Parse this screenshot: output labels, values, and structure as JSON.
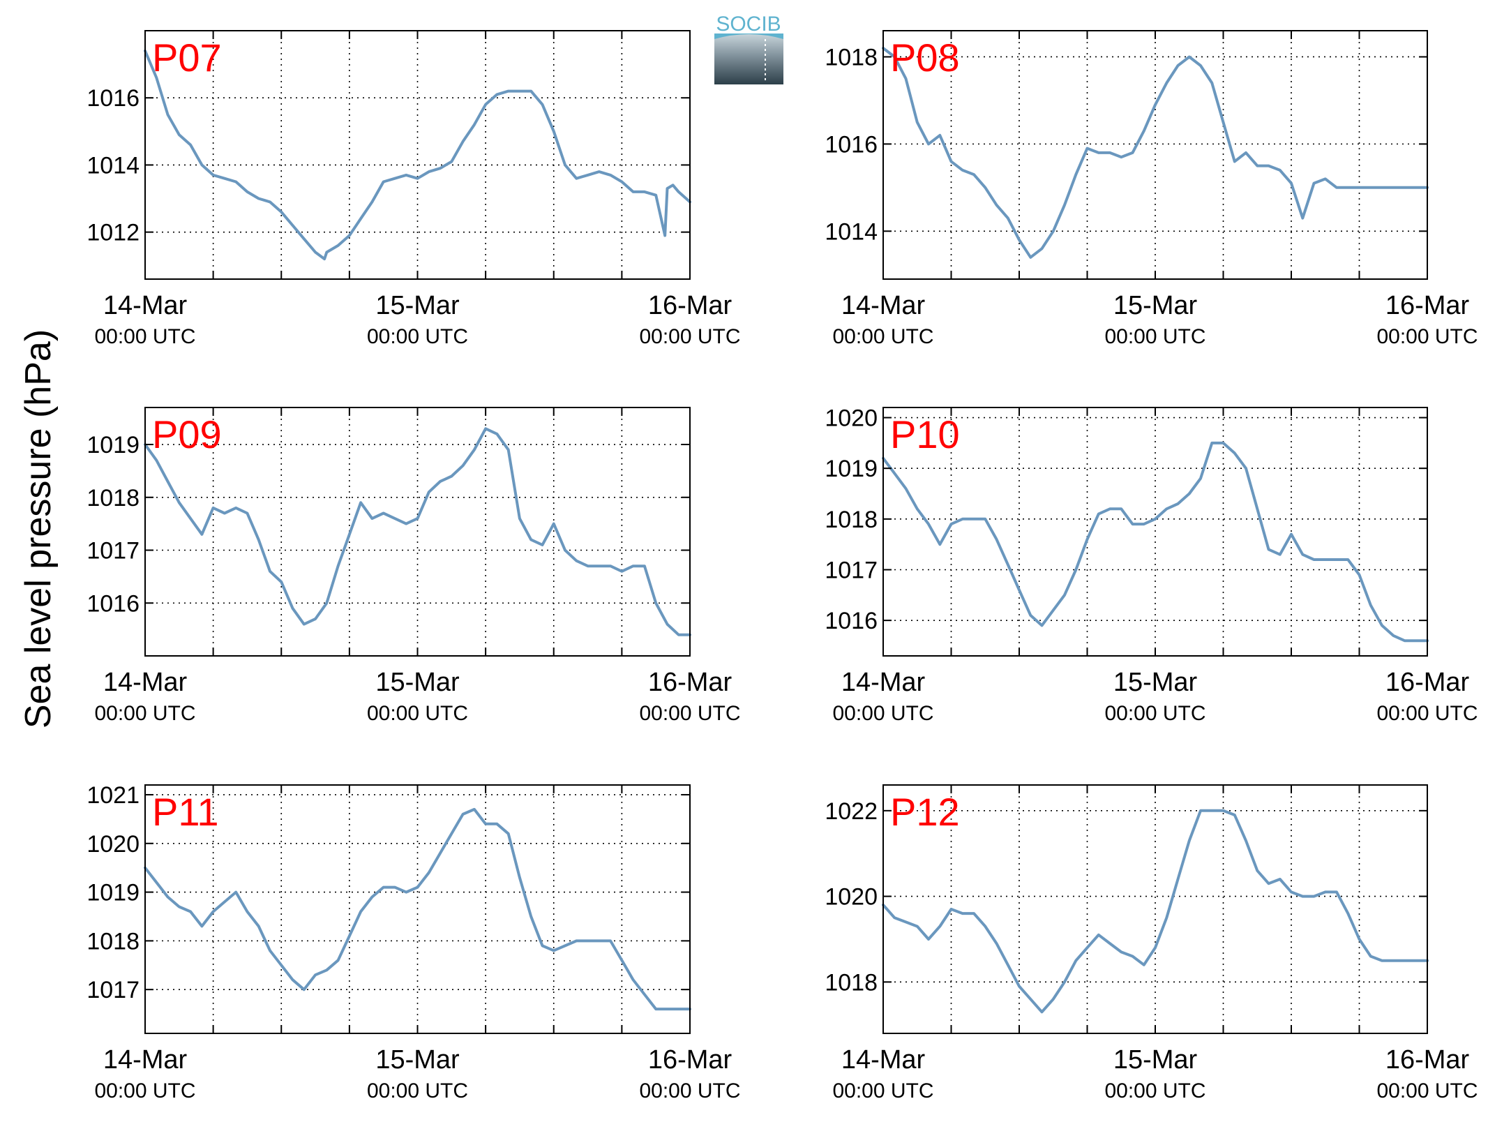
{
  "figure": {
    "ylabel": "Sea level pressure (hPa)",
    "logo_text": "SOCIB"
  },
  "colors": {
    "line": "#6a97be",
    "panel_label": "#ff0000",
    "logo_top": "#5fb3cf",
    "logo_bottom": "#2c3f49"
  },
  "chart_data": [
    {
      "type": "line",
      "label": "P07",
      "x_ticks": [
        {
          "line1": "14-Mar",
          "line2": "00:00 UTC"
        },
        {
          "line1": "15-Mar",
          "line2": "00:00 UTC"
        },
        {
          "line1": "16-Mar",
          "line2": "00:00 UTC"
        }
      ],
      "x_major_hours": [
        0,
        24,
        48
      ],
      "x_grid_hours": [
        6,
        12,
        18,
        24,
        30,
        36,
        42
      ],
      "xlim_hours": [
        0,
        48
      ],
      "ylim": [
        1010.6,
        1018.0
      ],
      "yticks": [
        1012,
        1014,
        1016
      ],
      "grid": true,
      "x_hours": [
        0,
        1,
        2,
        3,
        4,
        5,
        6,
        7,
        8,
        9,
        10,
        11,
        12,
        13,
        14,
        15,
        15.8,
        16,
        17,
        18,
        19,
        20,
        21,
        22,
        23,
        24,
        25,
        26,
        27,
        28,
        29,
        30,
        31,
        32,
        33,
        34,
        35,
        36,
        37,
        38,
        39,
        40,
        41,
        42,
        43,
        44,
        45,
        45.8,
        46,
        46.5,
        47,
        48
      ],
      "y": [
        1017.4,
        1016.6,
        1015.5,
        1014.9,
        1014.6,
        1014.0,
        1013.7,
        1013.6,
        1013.5,
        1013.2,
        1013.0,
        1012.9,
        1012.6,
        1012.2,
        1011.8,
        1011.4,
        1011.2,
        1011.4,
        1011.6,
        1011.9,
        1012.4,
        1012.9,
        1013.5,
        1013.6,
        1013.7,
        1013.6,
        1013.8,
        1013.9,
        1014.1,
        1014.7,
        1015.2,
        1015.8,
        1016.1,
        1016.2,
        1016.2,
        1016.2,
        1015.8,
        1015.0,
        1014.0,
        1013.6,
        1013.7,
        1013.8,
        1013.7,
        1013.5,
        1013.2,
        1013.2,
        1013.1,
        1011.9,
        1013.3,
        1013.4,
        1013.2,
        1012.9
      ]
    },
    {
      "type": "line",
      "label": "P08",
      "x_ticks": [
        {
          "line1": "14-Mar",
          "line2": "00:00 UTC"
        },
        {
          "line1": "15-Mar",
          "line2": "00:00 UTC"
        },
        {
          "line1": "16-Mar",
          "line2": "00:00 UTC"
        }
      ],
      "x_major_hours": [
        0,
        24,
        48
      ],
      "x_grid_hours": [
        6,
        12,
        18,
        24,
        30,
        36,
        42
      ],
      "xlim_hours": [
        0,
        48
      ],
      "ylim": [
        1012.9,
        1018.6
      ],
      "yticks": [
        1014,
        1016,
        1018
      ],
      "grid": true,
      "x_hours": [
        0,
        1,
        2,
        3,
        4,
        5,
        6,
        7,
        8,
        9,
        10,
        11,
        12,
        13,
        14,
        15,
        16,
        17,
        18,
        19,
        20,
        21,
        22,
        23,
        24,
        25,
        26,
        27,
        28,
        29,
        30,
        31,
        32,
        33,
        34,
        35,
        36,
        37,
        38,
        39,
        40,
        41,
        42,
        43,
        44,
        45,
        45.5,
        46,
        47,
        47.5,
        48
      ],
      "y": [
        1018.2,
        1018.0,
        1017.5,
        1016.5,
        1016.0,
        1016.2,
        1015.6,
        1015.4,
        1015.3,
        1015.0,
        1014.6,
        1014.3,
        1013.8,
        1013.4,
        1013.6,
        1014.0,
        1014.6,
        1015.3,
        1015.9,
        1015.8,
        1015.8,
        1015.7,
        1015.8,
        1016.3,
        1016.9,
        1017.4,
        1017.8,
        1018.0,
        1017.8,
        1017.4,
        1016.5,
        1015.6,
        1015.8,
        1015.5,
        1015.5,
        1015.4,
        1015.1,
        1014.3,
        1015.1,
        1015.2,
        1015.0,
        1015.0,
        1015.0,
        1015.0,
        1015.0,
        1015.0,
        1015.0,
        1015.0,
        1015.0,
        1015.0,
        1015.0
      ]
    },
    {
      "type": "line",
      "label": "P09",
      "x_ticks": [
        {
          "line1": "14-Mar",
          "line2": "00:00 UTC"
        },
        {
          "line1": "15-Mar",
          "line2": "00:00 UTC"
        },
        {
          "line1": "16-Mar",
          "line2": "00:00 UTC"
        }
      ],
      "x_major_hours": [
        0,
        24,
        48
      ],
      "x_grid_hours": [
        6,
        12,
        18,
        24,
        30,
        36,
        42
      ],
      "xlim_hours": [
        0,
        48
      ],
      "ylim": [
        1015.0,
        1019.7
      ],
      "yticks": [
        1016,
        1017,
        1018,
        1019
      ],
      "grid": true,
      "x_hours": [
        0,
        1,
        2,
        3,
        4,
        5,
        6,
        7,
        8,
        9,
        10,
        11,
        12,
        13,
        14,
        15,
        16,
        17,
        18,
        19,
        20,
        21,
        22,
        23,
        24,
        25,
        26,
        27,
        28,
        29,
        30,
        31,
        32,
        33,
        34,
        35,
        36,
        37,
        38,
        39,
        40,
        41,
        42,
        43,
        44,
        45,
        46,
        47,
        48
      ],
      "y": [
        1019.0,
        1018.7,
        1018.3,
        1017.9,
        1017.6,
        1017.3,
        1017.8,
        1017.7,
        1017.8,
        1017.7,
        1017.2,
        1016.6,
        1016.4,
        1015.9,
        1015.6,
        1015.7,
        1016.0,
        1016.7,
        1017.3,
        1017.9,
        1017.6,
        1017.7,
        1017.6,
        1017.5,
        1017.6,
        1018.1,
        1018.3,
        1018.4,
        1018.6,
        1018.9,
        1019.3,
        1019.2,
        1018.9,
        1017.6,
        1017.2,
        1017.1,
        1017.5,
        1017.0,
        1016.8,
        1016.7,
        1016.7,
        1016.7,
        1016.6,
        1016.7,
        1016.7,
        1016.0,
        1015.6,
        1015.4,
        1015.4
      ]
    },
    {
      "type": "line",
      "label": "P10",
      "x_ticks": [
        {
          "line1": "14-Mar",
          "line2": "00:00 UTC"
        },
        {
          "line1": "15-Mar",
          "line2": "00:00 UTC"
        },
        {
          "line1": "16-Mar",
          "line2": "00:00 UTC"
        }
      ],
      "x_major_hours": [
        0,
        24,
        48
      ],
      "x_grid_hours": [
        6,
        12,
        18,
        24,
        30,
        36,
        42
      ],
      "xlim_hours": [
        0,
        48
      ],
      "ylim": [
        1015.3,
        1020.2
      ],
      "yticks": [
        1016,
        1017,
        1018,
        1019,
        1020
      ],
      "grid": true,
      "x_hours": [
        0,
        1,
        2,
        3,
        4,
        5,
        6,
        7,
        8,
        9,
        10,
        11,
        12,
        13,
        14,
        15,
        16,
        17,
        18,
        19,
        20,
        21,
        22,
        23,
        24,
        25,
        26,
        27,
        28,
        29,
        30,
        31,
        32,
        33,
        34,
        35,
        36,
        37,
        38,
        39,
        40,
        41,
        42,
        43,
        44,
        45,
        46,
        47,
        48
      ],
      "y": [
        1019.2,
        1018.9,
        1018.6,
        1018.2,
        1017.9,
        1017.5,
        1017.9,
        1018.0,
        1018.0,
        1018.0,
        1017.6,
        1017.1,
        1016.6,
        1016.1,
        1015.9,
        1016.2,
        1016.5,
        1017.0,
        1017.6,
        1018.1,
        1018.2,
        1018.2,
        1017.9,
        1017.9,
        1018.0,
        1018.2,
        1018.3,
        1018.5,
        1018.8,
        1019.5,
        1019.5,
        1019.3,
        1019.0,
        1018.2,
        1017.4,
        1017.3,
        1017.7,
        1017.3,
        1017.2,
        1017.2,
        1017.2,
        1017.2,
        1016.9,
        1016.3,
        1015.9,
        1015.7,
        1015.6,
        1015.6,
        1015.6
      ]
    },
    {
      "type": "line",
      "label": "P11",
      "x_ticks": [
        {
          "line1": "14-Mar",
          "line2": "00:00 UTC"
        },
        {
          "line1": "15-Mar",
          "line2": "00:00 UTC"
        },
        {
          "line1": "16-Mar",
          "line2": "00:00 UTC"
        }
      ],
      "x_major_hours": [
        0,
        24,
        48
      ],
      "x_grid_hours": [
        6,
        12,
        18,
        24,
        30,
        36,
        42
      ],
      "xlim_hours": [
        0,
        48
      ],
      "ylim": [
        1016.1,
        1021.2
      ],
      "yticks": [
        1017,
        1018,
        1019,
        1020,
        1021
      ],
      "grid": true,
      "x_hours": [
        0,
        1,
        2,
        3,
        4,
        5,
        6,
        7,
        8,
        9,
        10,
        11,
        12,
        13,
        14,
        15,
        16,
        17,
        18,
        19,
        20,
        21,
        22,
        23,
        24,
        25,
        26,
        27,
        28,
        29,
        30,
        31,
        32,
        33,
        34,
        35,
        36,
        37,
        38,
        39,
        40,
        41,
        42,
        43,
        44,
        45,
        46,
        47,
        48
      ],
      "y": [
        1019.5,
        1019.2,
        1018.9,
        1018.7,
        1018.6,
        1018.3,
        1018.6,
        1018.8,
        1019.0,
        1018.6,
        1018.3,
        1017.8,
        1017.5,
        1017.2,
        1017.0,
        1017.3,
        1017.4,
        1017.6,
        1018.1,
        1018.6,
        1018.9,
        1019.1,
        1019.1,
        1019.0,
        1019.1,
        1019.4,
        1019.8,
        1020.2,
        1020.6,
        1020.7,
        1020.4,
        1020.4,
        1020.2,
        1019.3,
        1018.5,
        1017.9,
        1017.8,
        1017.9,
        1018.0,
        1018.0,
        1018.0,
        1018.0,
        1017.6,
        1017.2,
        1016.9,
        1016.6,
        1016.6,
        1016.6,
        1016.6
      ]
    },
    {
      "type": "line",
      "label": "P12",
      "x_ticks": [
        {
          "line1": "14-Mar",
          "line2": "00:00 UTC"
        },
        {
          "line1": "15-Mar",
          "line2": "00:00 UTC"
        },
        {
          "line1": "16-Mar",
          "line2": "00:00 UTC"
        }
      ],
      "x_major_hours": [
        0,
        24,
        48
      ],
      "x_grid_hours": [
        6,
        12,
        18,
        24,
        30,
        36,
        42
      ],
      "xlim_hours": [
        0,
        48
      ],
      "ylim": [
        1016.8,
        1022.6
      ],
      "yticks": [
        1018,
        1020,
        1022
      ],
      "grid": true,
      "x_hours": [
        0,
        1,
        2,
        3,
        4,
        5,
        6,
        7,
        8,
        9,
        10,
        11,
        12,
        13,
        14,
        15,
        16,
        17,
        18,
        19,
        20,
        21,
        22,
        23,
        24,
        25,
        26,
        27,
        28,
        29,
        30,
        31,
        32,
        33,
        34,
        35,
        36,
        37,
        38,
        39,
        40,
        41,
        42,
        43,
        44,
        45,
        46,
        47,
        48
      ],
      "y": [
        1019.8,
        1019.5,
        1019.4,
        1019.3,
        1019.0,
        1019.3,
        1019.7,
        1019.6,
        1019.6,
        1019.3,
        1018.9,
        1018.4,
        1017.9,
        1017.6,
        1017.3,
        1017.6,
        1018.0,
        1018.5,
        1018.8,
        1019.1,
        1018.9,
        1018.7,
        1018.6,
        1018.4,
        1018.8,
        1019.5,
        1020.4,
        1021.3,
        1022.0,
        1022.0,
        1022.0,
        1021.9,
        1021.3,
        1020.6,
        1020.3,
        1020.4,
        1020.1,
        1020.0,
        1020.0,
        1020.1,
        1020.1,
        1019.6,
        1019.0,
        1018.6,
        1018.5,
        1018.5,
        1018.5,
        1018.5,
        1018.5
      ]
    }
  ]
}
